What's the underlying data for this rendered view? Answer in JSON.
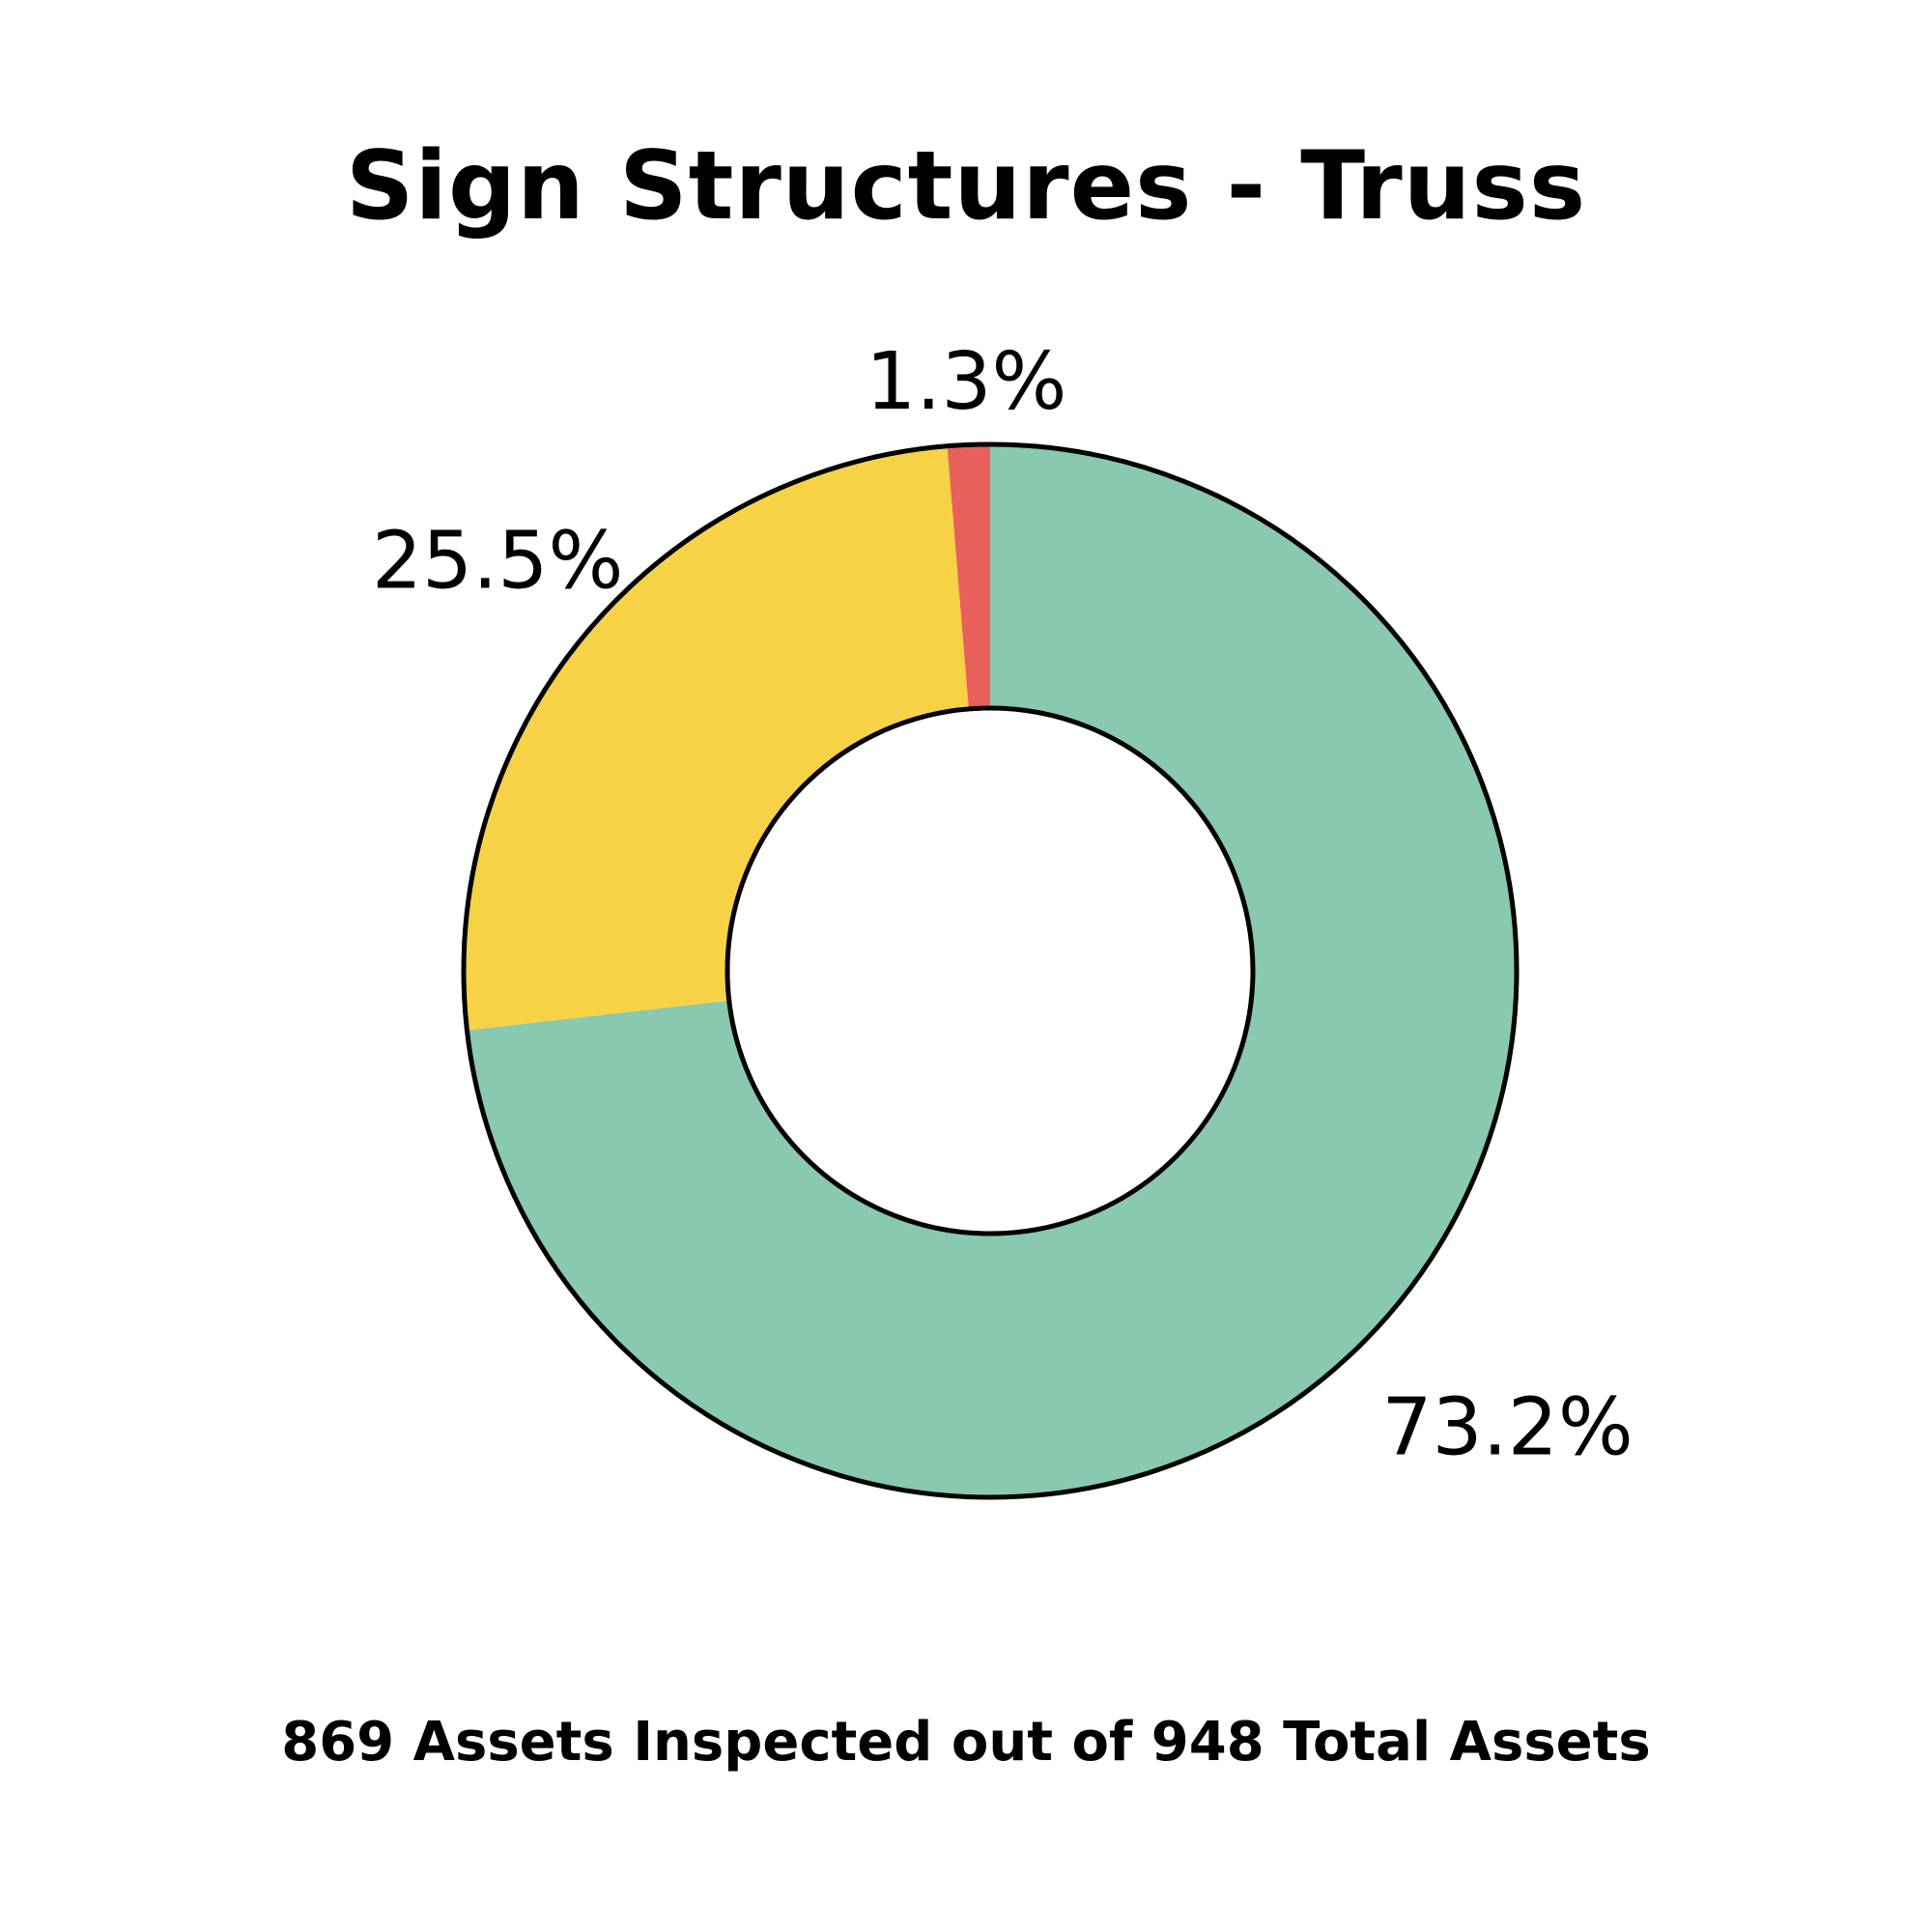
{
  "chart_data": {
    "type": "pie",
    "title": "Sign Structures - Truss",
    "subtitle": "869 Assets Inspected out of 948 Total Assets",
    "donut": true,
    "slices": [
      {
        "value": 73.2,
        "label": "73.2%",
        "color": "#88C9B0"
      },
      {
        "value": 25.5,
        "label": "25.5%",
        "color": "#F8D246"
      },
      {
        "value": 1.3,
        "label": "1.3%",
        "color": "#E85F5C"
      }
    ],
    "direction": "clockwise",
    "start": "top",
    "outline_color": "#000000",
    "background": "#FFFFFF"
  }
}
